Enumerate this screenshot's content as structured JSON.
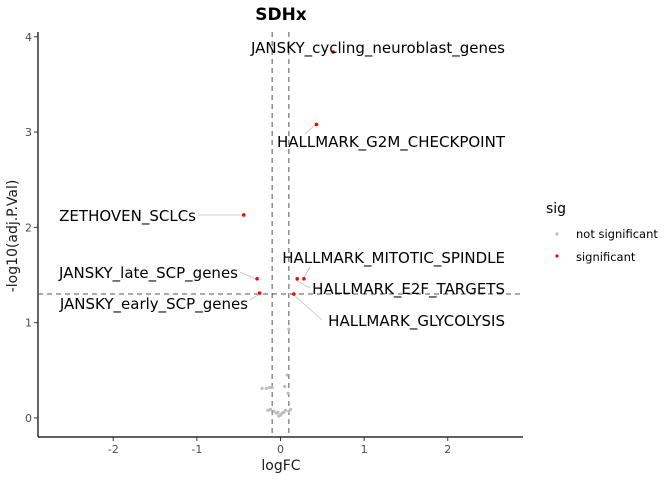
{
  "chart_data": {
    "type": "scatter",
    "title": "SDHx",
    "xlabel": "logFC",
    "ylabel": "-log10(adj.P.Val)",
    "xlim": [
      -2.9,
      2.9
    ],
    "ylim": [
      -0.2,
      4.05
    ],
    "xticks": [
      -2,
      -1,
      0,
      1,
      2
    ],
    "yticks": [
      0,
      1,
      2,
      3,
      4
    ],
    "grid": false,
    "threshold_lines": {
      "x": [
        -0.1,
        0.1
      ],
      "y": [
        1.3
      ]
    },
    "legend": {
      "title": "sig",
      "placement": "right",
      "entries": [
        {
          "label": "not significant",
          "color": "#bdbdbd"
        },
        {
          "label": "significant",
          "color": "#ff0000"
        }
      ]
    },
    "series": [
      {
        "name": "not significant",
        "color": "#bdbdbd",
        "points": [
          {
            "x": -0.22,
            "y": 0.31
          },
          {
            "x": -0.17,
            "y": 0.31
          },
          {
            "x": -0.13,
            "y": 0.32
          },
          {
            "x": -0.1,
            "y": 0.32
          },
          {
            "x": 0.08,
            "y": 0.45
          },
          {
            "x": 0.1,
            "y": 0.93
          },
          {
            "x": 0.05,
            "y": 0.33
          },
          {
            "x": -0.12,
            "y": 0.09
          },
          {
            "x": -0.08,
            "y": 0.07
          },
          {
            "x": -0.05,
            "y": 0.05
          },
          {
            "x": -0.03,
            "y": 0.06
          },
          {
            "x": 0.0,
            "y": 0.03
          },
          {
            "x": 0.02,
            "y": 0.05
          },
          {
            "x": 0.04,
            "y": 0.06
          },
          {
            "x": 0.06,
            "y": 0.08
          },
          {
            "x": 0.1,
            "y": 0.07
          },
          {
            "x": -0.15,
            "y": 0.08
          },
          {
            "x": 0.12,
            "y": 0.09
          },
          {
            "x": -0.02,
            "y": 0.02
          },
          {
            "x": 0.09,
            "y": 0.26
          }
        ]
      },
      {
        "name": "significant",
        "color": "#ff0000",
        "points": [
          {
            "x": 0.63,
            "y": 3.84,
            "label": "JANSKY_cycling_neuroblast_genes"
          },
          {
            "x": 0.43,
            "y": 3.08,
            "label": "HALLMARK_G2M_CHECKPOINT"
          },
          {
            "x": -0.44,
            "y": 2.13,
            "label": "ZETHOVEN_SCLCs"
          },
          {
            "x": 0.28,
            "y": 1.46,
            "label": "HALLMARK_MITOTIC_SPINDLE"
          },
          {
            "x": 0.2,
            "y": 1.46,
            "label": "HALLMARK_E2F_TARGETS"
          },
          {
            "x": -0.28,
            "y": 1.46,
            "label": "JANSKY_late_SCP_genes"
          },
          {
            "x": -0.25,
            "y": 1.31,
            "label": "JANSKY_early_SCP_genes"
          },
          {
            "x": 0.16,
            "y": 1.3,
            "label": "HALLMARK_GLYCOLYSIS"
          }
        ]
      }
    ]
  }
}
